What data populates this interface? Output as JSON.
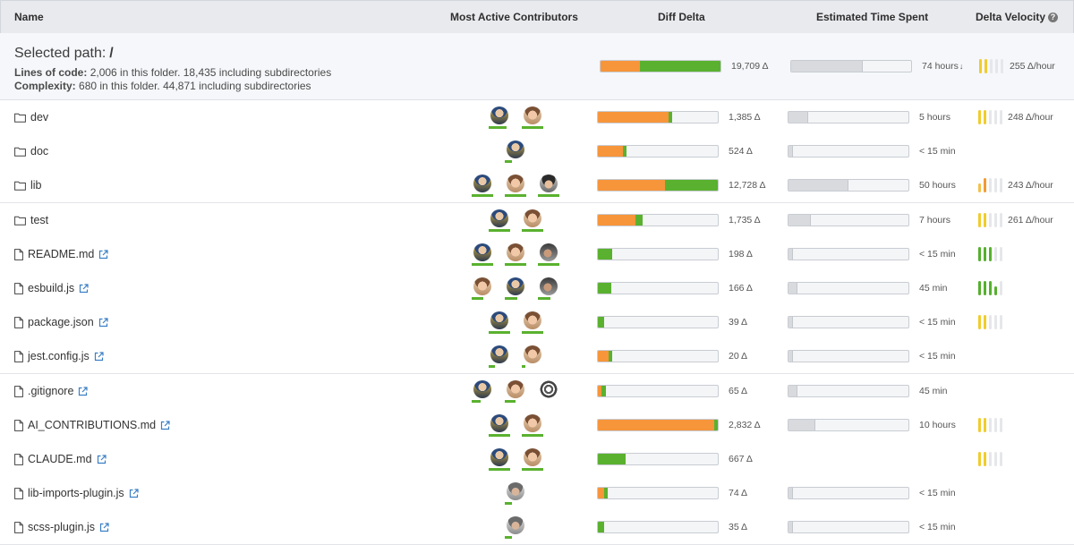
{
  "header": {
    "name": "Name",
    "contributors": "Most Active Contributors",
    "diff_delta": "Diff Delta",
    "time_spent": "Estimated Time Spent",
    "velocity": "Delta Velocity",
    "velocity_help_icon": "help-circle-icon"
  },
  "summary": {
    "title_label": "Selected path:",
    "path": "/",
    "loc_label": "Lines of code:",
    "loc_text": "2,006 in this folder. 18,435 including subdirectories",
    "complexity_label": "Complexity:",
    "complexity_text": "680 in this folder. 44,871 including subdirectories",
    "diff_value": "19,709 Δ",
    "diff_orange": 0.33,
    "diff_green": 0.67,
    "time_value": "74 hours",
    "time_sort_icon": "arrow-down-icon",
    "time_fill": 0.59,
    "velocity_value": "255 Δ/hour",
    "velocity_level": 2
  },
  "colors": {
    "orange": "#f7953b",
    "green": "#5ab12f",
    "time_fill": "#d8dade",
    "vel_yellow": "#f1cc2c",
    "vel_orange": "#f39a32",
    "vel_green": "#55b02e",
    "vel_empty": "#e6e7ea",
    "link": "#3b7fc4"
  },
  "rows": [
    {
      "name": "dev",
      "type": "folder",
      "link": false,
      "avatars": [
        {
          "c": "a",
          "u": 0.85
        },
        {
          "c": "b",
          "u": 1.0
        }
      ],
      "diff_orange": 0.59,
      "diff_green": 0.03,
      "diff_value": "1,385 Δ",
      "time_fill": 0.16,
      "time_value": "5 hours",
      "velocity": {
        "level": 2,
        "color": "yellow"
      },
      "velocity_value": "248 Δ/hour"
    },
    {
      "name": "doc",
      "type": "folder",
      "link": false,
      "avatars": [
        {
          "c": "a",
          "u": 0.35
        }
      ],
      "diff_orange": 0.21,
      "diff_green": 0.03,
      "diff_value": "524 Δ",
      "time_fill": 0.03,
      "time_value": "< 15 min",
      "velocity": null,
      "velocity_value": ""
    },
    {
      "name": "lib",
      "type": "folder",
      "link": false,
      "avatars": [
        {
          "c": "a",
          "u": 1.0
        },
        {
          "c": "b",
          "u": 1.0
        },
        {
          "c": "c",
          "u": 1.0
        }
      ],
      "diff_orange": 0.56,
      "diff_green": 0.44,
      "diff_value": "12,728 Δ",
      "time_fill": 0.49,
      "time_value": "50 hours",
      "velocity": {
        "level": 1,
        "color": "orange"
      },
      "velocity_value": "243 Δ/hour"
    },
    {
      "name": "test",
      "type": "folder",
      "link": false,
      "avatars": [
        {
          "c": "a",
          "u": 1.0
        },
        {
          "c": "b",
          "u": 1.0
        }
      ],
      "diff_orange": 0.31,
      "diff_green": 0.06,
      "diff_value": "1,735 Δ",
      "time_fill": 0.18,
      "time_value": "7 hours",
      "velocity": {
        "level": 2,
        "color": "yellow"
      },
      "velocity_value": "261 Δ/hour"
    },
    {
      "name": "README.md",
      "type": "file",
      "link": true,
      "avatars": [
        {
          "c": "a",
          "u": 1.0
        },
        {
          "c": "b",
          "u": 1.0
        },
        {
          "c": "d",
          "u": 1.0
        }
      ],
      "diff_orange": 0.0,
      "diff_green": 0.12,
      "diff_value": "198 Δ",
      "time_fill": 0.03,
      "time_value": "< 15 min",
      "velocity": {
        "level": 3,
        "color": "green"
      },
      "velocity_value": ""
    },
    {
      "name": "esbuild.js",
      "type": "file",
      "link": true,
      "avatars": [
        {
          "c": "b",
          "u": 0.55
        },
        {
          "c": "a",
          "u": 0.6
        },
        {
          "c": "d",
          "u": 0.6
        }
      ],
      "diff_orange": 0.0,
      "diff_green": 0.11,
      "diff_value": "166 Δ",
      "time_fill": 0.07,
      "time_value": "45 min",
      "velocity": {
        "level": 4,
        "color": "green"
      },
      "velocity_value": ""
    },
    {
      "name": "package.json",
      "type": "file",
      "link": true,
      "avatars": [
        {
          "c": "a",
          "u": 1.0
        },
        {
          "c": "b",
          "u": 1.0
        }
      ],
      "diff_orange": 0.0,
      "diff_green": 0.05,
      "diff_value": "39 Δ",
      "time_fill": 0.03,
      "time_value": "< 15 min",
      "velocity": {
        "level": 2,
        "color": "yellow"
      },
      "velocity_value": ""
    },
    {
      "name": "jest.config.js",
      "type": "file",
      "link": true,
      "avatars": [
        {
          "c": "a",
          "u": 0.3
        },
        {
          "c": "b",
          "u": 0.15
        }
      ],
      "diff_orange": 0.09,
      "diff_green": 0.03,
      "diff_value": "20 Δ",
      "time_fill": 0.03,
      "time_value": "< 15 min",
      "velocity": null,
      "velocity_value": ""
    },
    {
      "name": ".gitignore",
      "type": "file",
      "link": true,
      "avatars": [
        {
          "c": "a",
          "u": 0.4
        },
        {
          "c": "b",
          "u": 0.5
        },
        {
          "c": "e",
          "u": 0.0
        }
      ],
      "diff_orange": 0.03,
      "diff_green": 0.04,
      "diff_value": "65 Δ",
      "time_fill": 0.07,
      "time_value": "45 min",
      "velocity": null,
      "velocity_value": ""
    },
    {
      "name": "AI_CONTRIBUTIONS.md",
      "type": "file",
      "link": true,
      "avatars": [
        {
          "c": "a",
          "u": 1.0
        },
        {
          "c": "b",
          "u": 1.0
        }
      ],
      "diff_orange": 0.97,
      "diff_green": 0.03,
      "diff_value": "2,832 Δ",
      "time_fill": 0.22,
      "time_value": "10 hours",
      "velocity": {
        "level": 2,
        "color": "yellow"
      },
      "velocity_value": ""
    },
    {
      "name": "CLAUDE.md",
      "type": "file",
      "link": true,
      "avatars": [
        {
          "c": "a",
          "u": 1.0
        },
        {
          "c": "b",
          "u": 1.0
        }
      ],
      "diff_orange": 0.0,
      "diff_green": 0.23,
      "diff_value": "667 Δ",
      "time_fill": null,
      "time_value": "",
      "velocity": {
        "level": 2,
        "color": "yellow"
      },
      "velocity_value": ""
    },
    {
      "name": "lib-imports-plugin.js",
      "type": "file",
      "link": true,
      "avatars": [
        {
          "c": "f",
          "u": 0.35
        }
      ],
      "diff_orange": 0.05,
      "diff_green": 0.03,
      "diff_value": "74 Δ",
      "time_fill": 0.03,
      "time_value": "< 15 min",
      "velocity": null,
      "velocity_value": ""
    },
    {
      "name": "scss-plugin.js",
      "type": "file",
      "link": true,
      "avatars": [
        {
          "c": "f",
          "u": 0.35
        }
      ],
      "diff_orange": 0.0,
      "diff_green": 0.05,
      "diff_value": "35 Δ",
      "time_fill": 0.03,
      "time_value": "< 15 min",
      "velocity": null,
      "velocity_value": ""
    }
  ]
}
